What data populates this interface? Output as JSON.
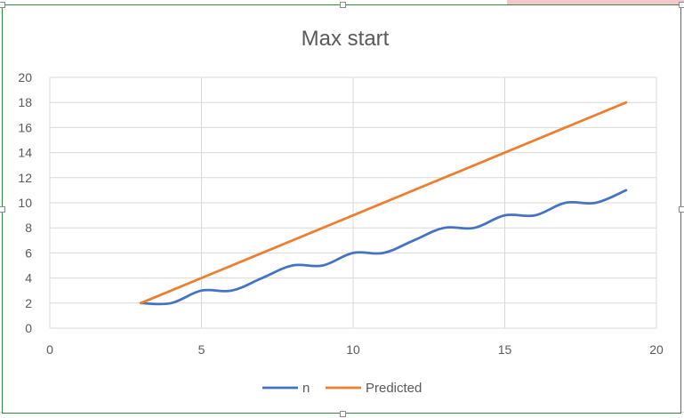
{
  "chart_data": {
    "type": "line",
    "title": "Max start",
    "xlabel": "",
    "ylabel": "",
    "xlim": [
      0,
      20
    ],
    "ylim": [
      0,
      20
    ],
    "x_ticks": [
      "0",
      "5",
      "10",
      "15",
      "20"
    ],
    "y_ticks": [
      "0",
      "2",
      "4",
      "6",
      "8",
      "10",
      "12",
      "14",
      "16",
      "18",
      "20"
    ],
    "grid": true,
    "legend": "bottom",
    "series": [
      {
        "name": "n",
        "color": "#4472c4",
        "smooth": true,
        "x": [
          3,
          4,
          5,
          6,
          7,
          8,
          9,
          10,
          11,
          12,
          13,
          14,
          15,
          16,
          17,
          18,
          19
        ],
        "y": [
          2,
          2,
          3,
          3,
          4,
          5,
          5,
          6,
          6,
          7,
          8,
          8,
          9,
          9,
          10,
          10,
          11
        ]
      },
      {
        "name": "Predicted",
        "color": "#ed7d31",
        "smooth": false,
        "x": [
          3,
          19
        ],
        "y": [
          2,
          18
        ]
      }
    ]
  }
}
